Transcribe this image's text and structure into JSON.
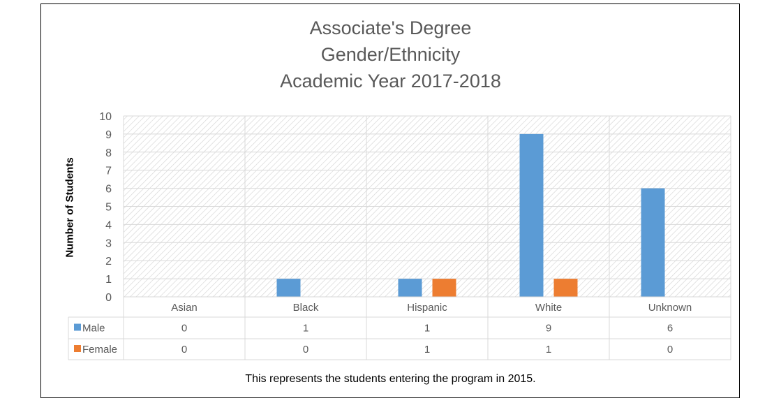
{
  "chart_data": {
    "type": "bar",
    "title_lines": [
      "Associate's Degree",
      "Gender/Ethnicity",
      "Academic Year 2017-2018"
    ],
    "ylabel": "Number of Students",
    "xlabel": "",
    "categories": [
      "Asian",
      "Black",
      "Hispanic",
      "White",
      "Unknown"
    ],
    "series": [
      {
        "name": "Male",
        "values": [
          0,
          1,
          1,
          9,
          6
        ],
        "color": "#5B9BD5"
      },
      {
        "name": "Female",
        "values": [
          0,
          0,
          1,
          1,
          0
        ],
        "color": "#ED7D31"
      }
    ],
    "ylim": [
      0,
      10
    ],
    "yticks": [
      0,
      1,
      2,
      3,
      4,
      5,
      6,
      7,
      8,
      9,
      10
    ],
    "grid": true,
    "plot_background": "hatched",
    "data_table": true,
    "caption": "This represents the students entering the program in 2015."
  }
}
